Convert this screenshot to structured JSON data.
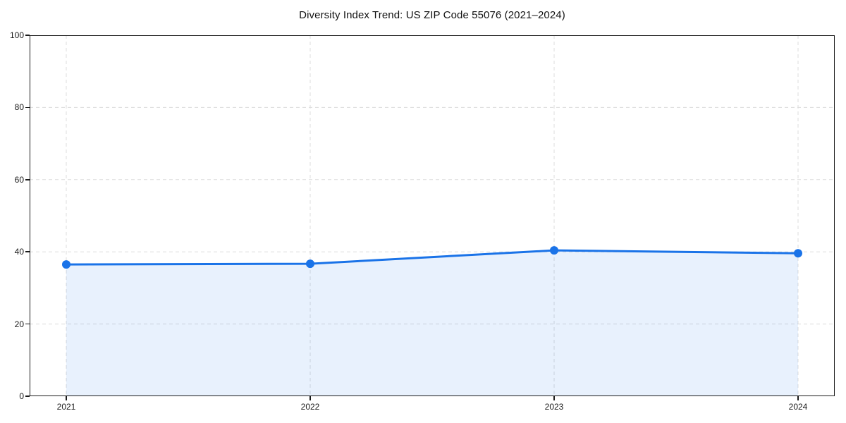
{
  "chart_data": {
    "type": "line",
    "title": "Diversity Index Trend: US ZIP Code 55076 (2021–2024)",
    "categories": [
      "2021",
      "2022",
      "2023",
      "2024"
    ],
    "series": [
      {
        "name": "Diversity Index",
        "values": [
          36.5,
          36.7,
          40.4,
          39.6
        ]
      }
    ],
    "xlabel": "",
    "ylabel": "",
    "ylim": [
      0,
      100
    ],
    "yticks": [
      0,
      20,
      40,
      60,
      80,
      100
    ],
    "grid": "dashed",
    "legend": "none",
    "area_fill": true,
    "markers": true,
    "colors": {
      "line": "#1a73e8",
      "marker": "#1a73e8",
      "area_fill": "rgba(26,115,232,0.10)",
      "grid": "#dcdcdc",
      "spine": "#1a1a1a",
      "text": "#111111",
      "background": "#ffffff"
    }
  }
}
